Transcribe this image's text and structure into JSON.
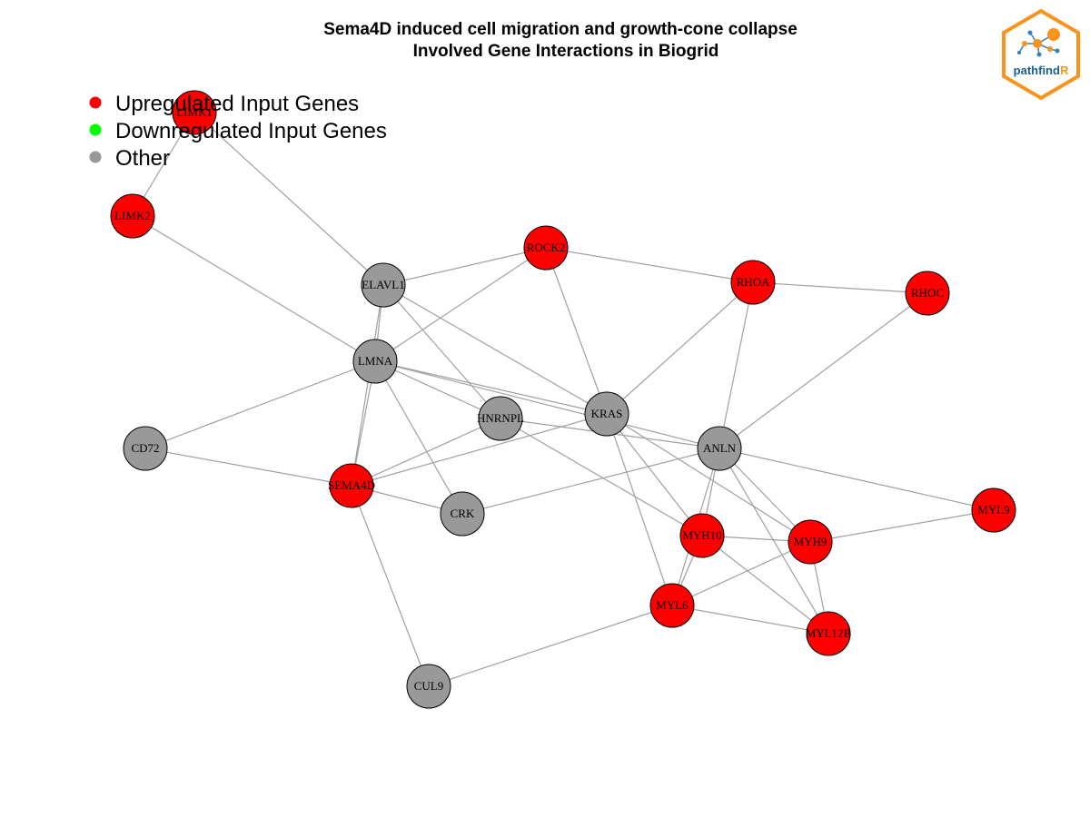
{
  "title": {
    "line1": "Sema4D induced cell migration and growth-cone collapse",
    "line2": "Involved Gene Interactions in Biogrid"
  },
  "legend": [
    {
      "label": "Upregulated Input Genes",
      "color": "#ff0000"
    },
    {
      "label": "Downregulated Input Genes",
      "color": "#00ff00"
    },
    {
      "label": "Other",
      "color": "#999999"
    }
  ],
  "logo": {
    "prefix": "pathfind",
    "suffix": "R",
    "border_color": "#f7941d",
    "text_color": "#1a5e8e",
    "accent_color": "#f7941d"
  },
  "colors": {
    "up": "#ff0000",
    "other": "#999999",
    "edge": "#a0a0a0"
  },
  "nodes": [
    {
      "id": "LIMK1",
      "status": "up"
    },
    {
      "id": "LIMK2",
      "status": "up"
    },
    {
      "id": "ROCK2",
      "status": "up"
    },
    {
      "id": "RHOA",
      "status": "up"
    },
    {
      "id": "RHOC",
      "status": "up"
    },
    {
      "id": "ELAVL1",
      "status": "other"
    },
    {
      "id": "LMNA",
      "status": "other"
    },
    {
      "id": "HNRNPL",
      "status": "other"
    },
    {
      "id": "KRAS",
      "status": "other"
    },
    {
      "id": "ANLN",
      "status": "other"
    },
    {
      "id": "CD72",
      "status": "other"
    },
    {
      "id": "SEMA4D",
      "status": "up"
    },
    {
      "id": "CRK",
      "status": "other"
    },
    {
      "id": "MYL9",
      "status": "up"
    },
    {
      "id": "MYH10",
      "status": "up"
    },
    {
      "id": "MYH9",
      "status": "up"
    },
    {
      "id": "MYL6",
      "status": "up"
    },
    {
      "id": "MYL12B",
      "status": "up"
    },
    {
      "id": "CUL9",
      "status": "other"
    }
  ],
  "edges": [
    [
      "LIMK1",
      "LIMK2"
    ],
    [
      "LIMK1",
      "ELAVL1"
    ],
    [
      "LIMK2",
      "LMNA"
    ],
    [
      "ELAVL1",
      "ROCK2"
    ],
    [
      "ELAVL1",
      "LMNA"
    ],
    [
      "ELAVL1",
      "SEMA4D"
    ],
    [
      "ELAVL1",
      "HNRNPL"
    ],
    [
      "ELAVL1",
      "KRAS"
    ],
    [
      "ROCK2",
      "RHOA"
    ],
    [
      "ROCK2",
      "LMNA"
    ],
    [
      "ROCK2",
      "KRAS"
    ],
    [
      "RHOA",
      "RHOC"
    ],
    [
      "RHOA",
      "KRAS"
    ],
    [
      "RHOA",
      "ANLN"
    ],
    [
      "RHOC",
      "ANLN"
    ],
    [
      "LMNA",
      "CD72"
    ],
    [
      "LMNA",
      "SEMA4D"
    ],
    [
      "LMNA",
      "HNRNPL"
    ],
    [
      "LMNA",
      "KRAS"
    ],
    [
      "LMNA",
      "CRK"
    ],
    [
      "LMNA",
      "ANLN"
    ],
    [
      "CD72",
      "SEMA4D"
    ],
    [
      "SEMA4D",
      "HNRNPL"
    ],
    [
      "SEMA4D",
      "KRAS"
    ],
    [
      "SEMA4D",
      "CRK"
    ],
    [
      "SEMA4D",
      "CUL9"
    ],
    [
      "HNRNPL",
      "ANLN"
    ],
    [
      "HNRNPL",
      "MYH10"
    ],
    [
      "CRK",
      "ANLN"
    ],
    [
      "KRAS",
      "MYH10"
    ],
    [
      "KRAS",
      "MYH9"
    ],
    [
      "KRAS",
      "MYL6"
    ],
    [
      "ANLN",
      "MYL9"
    ],
    [
      "ANLN",
      "MYH10"
    ],
    [
      "ANLN",
      "MYH9"
    ],
    [
      "ANLN",
      "MYL6"
    ],
    [
      "ANLN",
      "MYL12B"
    ],
    [
      "MYL9",
      "MYH9"
    ],
    [
      "MYH10",
      "MYH9"
    ],
    [
      "MYH10",
      "MYL6"
    ],
    [
      "MYH10",
      "MYL12B"
    ],
    [
      "MYH9",
      "MYL6"
    ],
    [
      "MYH9",
      "MYL12B"
    ],
    [
      "MYL6",
      "MYL12B"
    ],
    [
      "MYL6",
      "CUL9"
    ]
  ]
}
